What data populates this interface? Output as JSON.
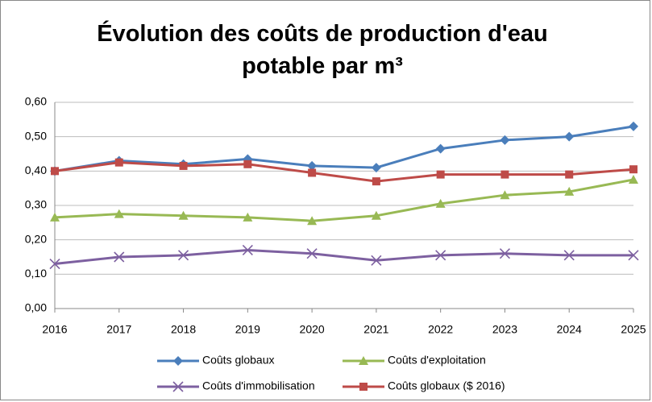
{
  "chart_data": {
    "type": "line",
    "title": "Évolution des coûts de production d'eau potable par m³",
    "x": [
      2016,
      2017,
      2018,
      2019,
      2020,
      2021,
      2022,
      2023,
      2024,
      2025
    ],
    "xlim": [
      2016,
      2025
    ],
    "xticks": [
      2016,
      2017,
      2018,
      2019,
      2020,
      2021,
      2022,
      2023,
      2024,
      2025
    ],
    "ylim": [
      0,
      0.6
    ],
    "yticks": [
      {
        "value": 0,
        "label": "0,00"
      },
      {
        "value": 0.1,
        "label": "0,10"
      },
      {
        "value": 0.2,
        "label": "0,20"
      },
      {
        "value": 0.3,
        "label": "0,30"
      },
      {
        "value": 0.4,
        "label": "0,40"
      },
      {
        "value": 0.5,
        "label": "0,50"
      },
      {
        "value": 0.6,
        "label": "0,60"
      }
    ],
    "grid": true,
    "legend": "bottom",
    "series": [
      {
        "name": "Coûts globaux",
        "color": "#4a7ebb",
        "marker": "diamond",
        "values": [
          0.4,
          0.43,
          0.42,
          0.435,
          0.415,
          0.41,
          0.465,
          0.49,
          0.5,
          0.53
        ]
      },
      {
        "name": "Coûts d'exploitation",
        "color": "#98b954",
        "marker": "triangle",
        "values": [
          0.265,
          0.275,
          0.27,
          0.265,
          0.255,
          0.27,
          0.305,
          0.33,
          0.34,
          0.375
        ]
      },
      {
        "name": "Coûts d'immobilisation",
        "color": "#7d60a0",
        "marker": "x",
        "values": [
          0.13,
          0.15,
          0.155,
          0.17,
          0.16,
          0.14,
          0.155,
          0.16,
          0.155,
          0.155
        ]
      },
      {
        "name": "Coûts globaux ($ 2016)",
        "color": "#be4b48",
        "marker": "square",
        "values": [
          0.4,
          0.425,
          0.415,
          0.42,
          0.395,
          0.37,
          0.39,
          0.39,
          0.39,
          0.405
        ]
      }
    ]
  }
}
